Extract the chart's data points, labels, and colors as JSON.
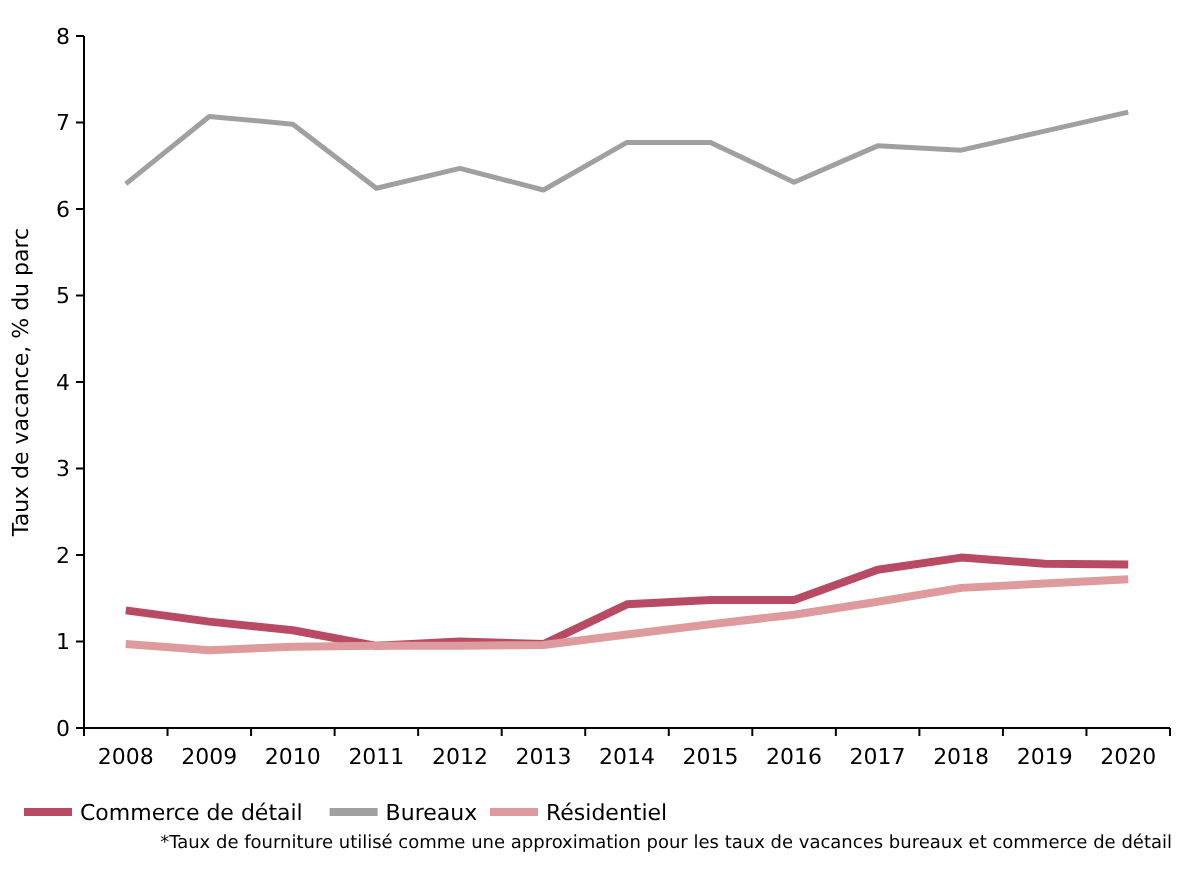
{
  "chart_data": {
    "type": "line",
    "ylabel": "Taux de vacance, % du parc",
    "categories": [
      "2008",
      "2009",
      "2010",
      "2011",
      "2012",
      "2013",
      "2014",
      "2015",
      "2016",
      "2017",
      "2018",
      "2019",
      "2020"
    ],
    "ylim": [
      0,
      8
    ],
    "yticks": [
      0,
      1,
      2,
      3,
      4,
      5,
      6,
      7,
      8
    ],
    "grid": false,
    "legend": "bottom left",
    "marker": "none",
    "series": [
      {
        "name": "Commerce de détail",
        "color": "#b94a64",
        "values": [
          1.36,
          1.23,
          1.13,
          0.95,
          1.0,
          0.97,
          1.43,
          1.48,
          1.48,
          1.83,
          1.97,
          1.9,
          1.89
        ]
      },
      {
        "name": "Bureaux",
        "color": "#a0a0a0",
        "values": [
          6.29,
          7.07,
          6.98,
          6.24,
          6.47,
          6.22,
          6.77,
          6.77,
          6.31,
          6.73,
          6.68,
          6.9,
          7.12
        ]
      },
      {
        "name": "Résidentiel",
        "color": "#de9a9c",
        "values": [
          0.97,
          0.9,
          0.94,
          0.95,
          0.95,
          0.96,
          1.08,
          1.2,
          1.31,
          1.46,
          1.62,
          1.67,
          1.72
        ]
      }
    ],
    "annotations": [
      "*Taux de fourniture utilisé comme une approximation pour les taux de vacances bureaux et commerce de détail"
    ]
  }
}
